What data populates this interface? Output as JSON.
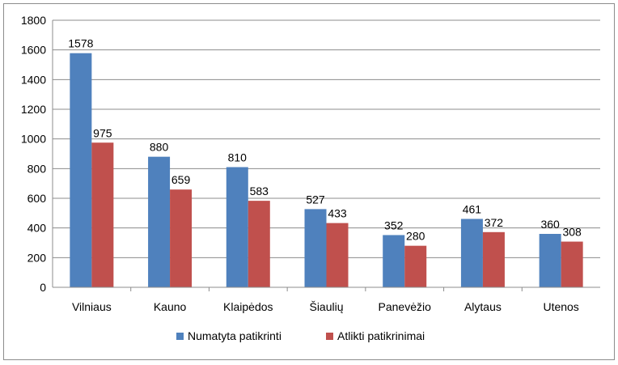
{
  "chart_data": {
    "type": "bar",
    "title": "",
    "xlabel": "",
    "ylabel": "",
    "ylim": [
      0,
      1800
    ],
    "yticks": [
      0,
      200,
      400,
      600,
      800,
      1000,
      1200,
      1400,
      1600,
      1800
    ],
    "grid": "horizontal",
    "legend_position": "bottom",
    "categories": [
      "Vilniaus",
      "Kauno",
      "Klaipėdos",
      "Šiaulių",
      "Panevėžio",
      "Alytaus",
      "Utenos"
    ],
    "series": [
      {
        "name": "Numatyta patikrinti",
        "color": "#4F81BD",
        "values": [
          1578,
          880,
          810,
          527,
          352,
          461,
          360
        ]
      },
      {
        "name": "Atlikti patikrinimai",
        "color": "#C0504D",
        "values": [
          975,
          659,
          583,
          433,
          280,
          372,
          308
        ]
      }
    ]
  }
}
